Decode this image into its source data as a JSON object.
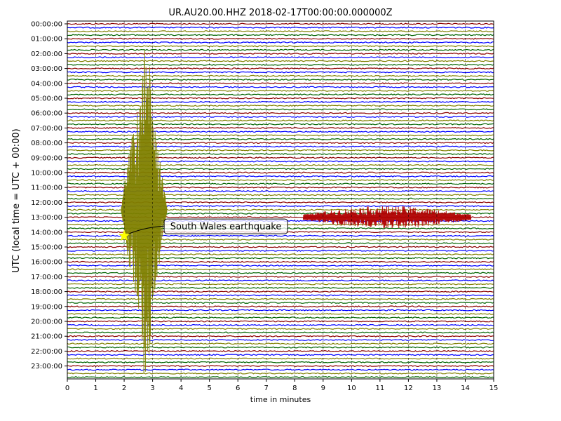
{
  "chart_data": {
    "type": "line",
    "title": "UR.AU20.00.HHZ  2018-02-17T00:00:00.000000Z",
    "xlabel": "time in minutes",
    "ylabel": "UTC (local time = UTC + 00:00)",
    "xlim": [
      0,
      15
    ],
    "x_ticks": [
      "0",
      "1",
      "2",
      "3",
      "4",
      "5",
      "6",
      "7",
      "8",
      "9",
      "10",
      "11",
      "12",
      "13",
      "14",
      "15"
    ],
    "y_tick_labels": [
      "00:00:00",
      "01:00:00",
      "02:00:00",
      "03:00:00",
      "04:00:00",
      "05:00:00",
      "06:00:00",
      "07:00:00",
      "08:00:00",
      "09:00:00",
      "10:00:00",
      "11:00:00",
      "12:00:00",
      "13:00:00",
      "14:00:00",
      "15:00:00",
      "16:00:00",
      "17:00:00",
      "18:00:00",
      "19:00:00",
      "20:00:00",
      "21:00:00",
      "22:00:00",
      "23:00:00"
    ],
    "traces_per_hour": 4,
    "trace_colors": [
      "#8b0000",
      "#0000ff",
      "#b00000",
      "#006400"
    ],
    "quake_trace_color": "#808000",
    "grid_x": true,
    "grid_style": "dashed",
    "annotation": {
      "text": "South Wales earthquake",
      "time_utc": "14:15:00",
      "minute": 2.0,
      "marker": "star",
      "marker_color": "#ffff00"
    },
    "events": [
      {
        "hour": 2.5,
        "minute_start": 1.9,
        "minute_end": 3.5,
        "color": "#808000",
        "description": "large seismic arrival spanning many traces"
      },
      {
        "hour": 13.0,
        "minute_start": 8.3,
        "minute_end": 14.2,
        "color": "#b00000",
        "description": "burst of noise"
      }
    ]
  }
}
